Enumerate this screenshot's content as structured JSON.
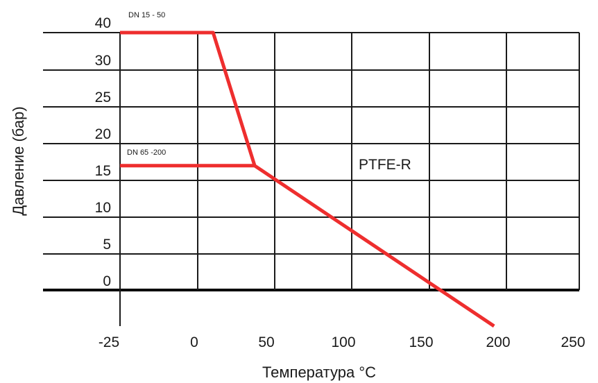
{
  "chart_data": {
    "type": "line",
    "xlabel": "Температура °C",
    "ylabel": "Давление (бар)",
    "x_ticks": [
      "-25",
      "0",
      "50",
      "100",
      "150",
      "200",
      "250"
    ],
    "y_ticks": [
      "40",
      "30",
      "25",
      "20",
      "15",
      "10",
      "5",
      "0"
    ],
    "grid": true,
    "line_color": "#ee2e2e",
    "series": [
      {
        "name": "DN 15 - 50",
        "points": [
          {
            "x": -25,
            "y": 40
          },
          {
            "x": 10,
            "y": 40
          },
          {
            "x": 37,
            "y": 17
          },
          {
            "x": 192,
            "y": -5
          }
        ]
      },
      {
        "name": "DN 65 -200",
        "points": [
          {
            "x": -25,
            "y": 17
          },
          {
            "x": 37,
            "y": 17
          }
        ]
      }
    ],
    "annotations": [
      "PTFE-R"
    ]
  }
}
